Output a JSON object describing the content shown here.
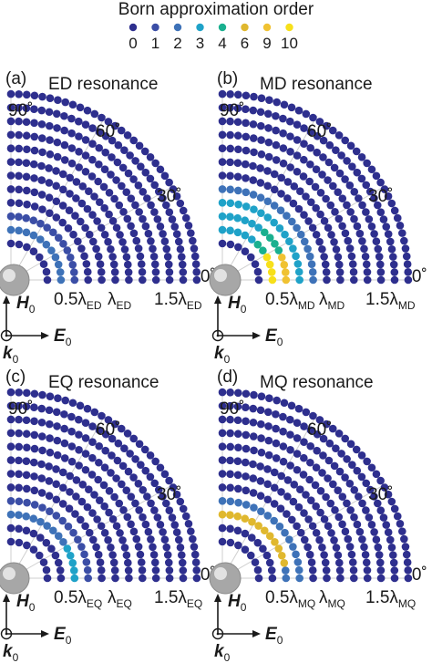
{
  "legend": {
    "title": "Born approximation order",
    "entries": [
      {
        "label": "0",
        "color": "#2e2f8e"
      },
      {
        "label": "1",
        "color": "#3b4ea6"
      },
      {
        "label": "2",
        "color": "#3e72b8"
      },
      {
        "label": "3",
        "color": "#1fa2c8"
      },
      {
        "label": "4",
        "color": "#1ab08f"
      },
      {
        "label": "6",
        "color": "#e0b82e"
      },
      {
        "label": "9",
        "color": "#f0c232"
      },
      {
        "label": "10",
        "color": "#f7e01a"
      }
    ]
  },
  "chart_data": [
    {
      "type": "scatter",
      "coordinate_system": "polar quadrant",
      "panel_label": "(a)",
      "title": "ED resonance",
      "angle_labels": [
        "90˚",
        "60˚",
        "30˚",
        "0˚"
      ],
      "radial_labels": [
        {
          "base": "0.5λ",
          "sub": "ED"
        },
        {
          "base": "λ",
          "sub": "ED"
        },
        {
          "base": "1.5λ",
          "sub": "ED"
        }
      ],
      "rings": 12,
      "highlight": [
        {
          "ring": 1,
          "angle_from": 0,
          "angle_to": 90,
          "order": "2"
        },
        {
          "ring": 2,
          "angle_from": 0,
          "angle_to": 90,
          "order": "1"
        }
      ],
      "axes": {
        "h_field": "H",
        "h_sub": "0",
        "e_field": "E",
        "e_sub": "0",
        "k": "k",
        "k_sub": "0"
      }
    },
    {
      "type": "scatter",
      "coordinate_system": "polar quadrant",
      "panel_label": "(b)",
      "title": "MD resonance",
      "angle_labels": [
        "90˚",
        "60˚",
        "30˚",
        "0˚"
      ],
      "radial_labels": [
        {
          "base": "0.5λ",
          "sub": "MD"
        },
        {
          "base": "λ",
          "sub": "MD"
        },
        {
          "base": "1.5λ",
          "sub": "MD"
        }
      ],
      "rings": 12,
      "highlight": [
        {
          "ring": 1,
          "angle_from": 0,
          "angle_to": 28,
          "order": "10"
        },
        {
          "ring": 1,
          "angle_from": 28,
          "angle_to": 48,
          "order": "4"
        },
        {
          "ring": 1,
          "angle_from": 48,
          "angle_to": 90,
          "order": "3"
        },
        {
          "ring": 2,
          "angle_from": 0,
          "angle_to": 25,
          "order": "9"
        },
        {
          "ring": 2,
          "angle_from": 25,
          "angle_to": 55,
          "order": "4"
        },
        {
          "ring": 2,
          "angle_from": 55,
          "angle_to": 90,
          "order": "3"
        },
        {
          "ring": 3,
          "angle_from": 0,
          "angle_to": 90,
          "order": "3"
        },
        {
          "ring": 4,
          "angle_from": 0,
          "angle_to": 90,
          "order": "2"
        }
      ],
      "axes": {
        "h_field": "H",
        "h_sub": "0",
        "e_field": "E",
        "e_sub": "0",
        "k": "k",
        "k_sub": "0"
      }
    },
    {
      "type": "scatter",
      "coordinate_system": "polar quadrant",
      "panel_label": "(c)",
      "title": "EQ resonance",
      "angle_labels": [
        "90˚",
        "60˚",
        "30˚",
        "0˚"
      ],
      "radial_labels": [
        {
          "base": "0.5λ",
          "sub": "EQ"
        },
        {
          "base": "λ",
          "sub": "EQ"
        },
        {
          "base": "1.5λ",
          "sub": "EQ"
        }
      ],
      "rings": 12,
      "highlight": [
        {
          "ring": 2,
          "angle_from": 0,
          "angle_to": 28,
          "order": "3"
        },
        {
          "ring": 2,
          "angle_from": 28,
          "angle_to": 90,
          "order": "2"
        },
        {
          "ring": 3,
          "angle_from": 0,
          "angle_to": 90,
          "order": "1"
        }
      ],
      "axes": {
        "h_field": "H",
        "h_sub": "0",
        "e_field": "E",
        "e_sub": "0",
        "k": "k",
        "k_sub": "0"
      }
    },
    {
      "type": "scatter",
      "coordinate_system": "polar quadrant",
      "panel_label": "(d)",
      "title": "MQ resonance",
      "angle_labels": [
        "90˚",
        "60˚",
        "30˚",
        "0˚"
      ],
      "radial_labels": [
        {
          "base": "0.5λ",
          "sub": "MQ"
        },
        {
          "base": "λ",
          "sub": "MQ"
        },
        {
          "base": "1.5λ",
          "sub": "MQ"
        }
      ],
      "rings": 12,
      "highlight": [
        {
          "ring": 2,
          "angle_from": 10,
          "angle_to": 90,
          "order": "6"
        },
        {
          "ring": 2,
          "angle_from": 0,
          "angle_to": 10,
          "order": "2"
        },
        {
          "ring": 3,
          "angle_from": 0,
          "angle_to": 90,
          "order": "2"
        }
      ],
      "axes": {
        "h_field": "H",
        "h_sub": "0",
        "e_field": "E",
        "e_sub": "0",
        "k": "k",
        "k_sub": "0"
      }
    }
  ]
}
